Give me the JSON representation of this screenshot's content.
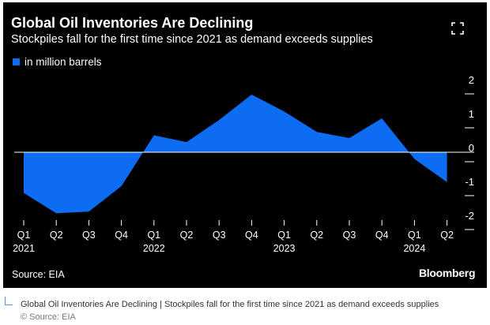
{
  "title": "Global Oil Inventories Are Declining",
  "subtitle": "Stockpiles fall for the first time since 2021 as demand exceeds supplies",
  "legend_label": "in million barrels",
  "source": "Source: EIA",
  "brand": "Bloomberg",
  "caption": "Global Oil Inventories Are Declining | Stockpiles fall for the first time since 2021 as demand exceeds supplies",
  "caption_source": "© Source: EIA",
  "icons": {
    "expand": "expand-icon"
  },
  "colors": {
    "series": "#0c6cf2",
    "background": "#000000",
    "text": "#ffffff"
  },
  "chart_data": {
    "type": "area",
    "categories": [
      "Q1 2021",
      "Q2 2021",
      "Q3 2021",
      "Q4 2021",
      "Q1 2022",
      "Q2 2022",
      "Q3 2022",
      "Q4 2022",
      "Q1 2023",
      "Q2 2023",
      "Q3 2023",
      "Q4 2023",
      "Q1 2024",
      "Q2 2024"
    ],
    "x_tick_labels": [
      "Q1",
      "Q2",
      "Q3",
      "Q4",
      "Q1",
      "Q2",
      "Q3",
      "Q4",
      "Q1",
      "Q2",
      "Q3",
      "Q4",
      "Q1",
      "Q2"
    ],
    "x_year_labels": [
      {
        "index": 0,
        "label": "2021"
      },
      {
        "index": 4,
        "label": "2022"
      },
      {
        "index": 8,
        "label": "2023"
      },
      {
        "index": 12,
        "label": "2024"
      }
    ],
    "series": [
      {
        "name": "in million barrels",
        "values": [
          -1.2,
          -1.8,
          -1.75,
          -1.0,
          0.5,
          0.3,
          0.95,
          1.7,
          1.2,
          0.6,
          0.42,
          1.0,
          -0.2,
          -0.88
        ]
      }
    ],
    "y_ticks": [
      2,
      1,
      0,
      -1,
      -2
    ],
    "ylim": [
      -2.2,
      2.2
    ],
    "grid": false,
    "legend_position": "top-left"
  }
}
